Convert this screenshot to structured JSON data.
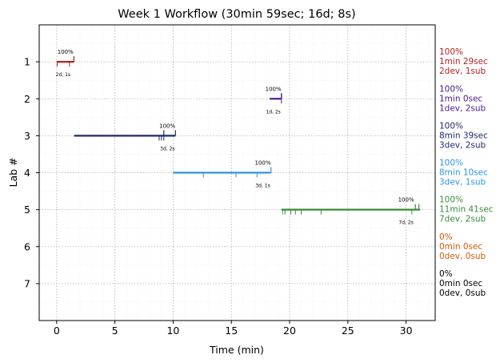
{
  "chart_data": {
    "type": "timeline",
    "title": "Week 1 Workflow (30min 59sec; 16d; 8s)",
    "xlabel": "Time (min)",
    "ylabel": "Lab #",
    "xlim": [
      -1.5,
      32.5
    ],
    "ylim": [
      8,
      0
    ],
    "xticks": [
      "0",
      "5",
      "10",
      "15",
      "20",
      "25",
      "30"
    ],
    "yticks": [
      "1",
      "2",
      "3",
      "4",
      "5",
      "6",
      "7"
    ],
    "grid": true,
    "labs": [
      {
        "lab": 1,
        "start": 0.0,
        "end": 1.5,
        "color": "#b22222",
        "dev_marks": [
          0.05,
          1.1
        ],
        "sub_marks": [
          1.48
        ],
        "pct": "100%",
        "pct_x": 0.75,
        "counts": "2d, 1s",
        "summary": [
          "100%",
          "1min 29sec",
          "2dev, 1sub"
        ]
      },
      {
        "lab": 2,
        "start": 18.3,
        "end": 19.3,
        "color": "#4b1a8a",
        "dev_marks": [
          19.3
        ],
        "sub_marks": [
          19.3,
          19.3
        ],
        "pct": "100%",
        "pct_x": 18.6,
        "counts": "1d, 2s",
        "summary": [
          "100%",
          "1min 0sec",
          "1dev, 2sub"
        ]
      },
      {
        "lab": 3,
        "start": 1.5,
        "end": 10.2,
        "color": "#1f2a6e",
        "dev_marks": [
          8.8,
          9.0,
          9.2
        ],
        "sub_marks": [
          9.2,
          10.2
        ],
        "pct": "100%",
        "pct_x": 9.5,
        "counts": "3d, 2s",
        "summary": [
          "100%",
          "8min 39sec",
          "3dev, 2sub"
        ]
      },
      {
        "lab": 4,
        "start": 10.0,
        "end": 18.4,
        "color": "#2e96e0",
        "dev_marks": [
          12.6,
          15.4,
          17.2
        ],
        "sub_marks": [
          18.4
        ],
        "pct": "100%",
        "pct_x": 17.7,
        "counts": "3d, 1s",
        "summary": [
          "100%",
          "8min 10sec",
          "3dev, 1sub"
        ]
      },
      {
        "lab": 5,
        "start": 19.3,
        "end": 31.2,
        "color": "#3a8c3a",
        "dev_marks": [
          19.4,
          19.6,
          20.1,
          20.5,
          21.0,
          22.7,
          30.5
        ],
        "sub_marks": [
          30.8,
          31.1
        ],
        "pct": "100%",
        "pct_x": 30.0,
        "counts": "7d, 2s",
        "summary": [
          "100%",
          "11min 41sec",
          "7dev, 2sub"
        ]
      },
      {
        "lab": 6,
        "start": null,
        "end": null,
        "color": "#d45a0a",
        "dev_marks": [],
        "sub_marks": [],
        "summary": [
          "0%",
          "0min 0sec",
          "0dev, 0sub"
        ]
      },
      {
        "lab": 7,
        "start": null,
        "end": null,
        "color": "#000000",
        "dev_marks": [],
        "sub_marks": [],
        "summary": [
          "0%",
          "0min 0sec",
          "0dev, 0sub"
        ]
      }
    ]
  }
}
